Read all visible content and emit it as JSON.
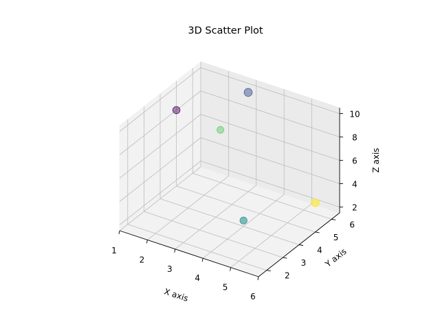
{
  "chart_data": {
    "type": "scatter",
    "projection": "3d",
    "title": "3D Scatter Plot",
    "xlabel": "X axis",
    "ylabel": "Y axis",
    "zlabel": "Z axis",
    "xlim": [
      1,
      6
    ],
    "ylim": [
      1.5,
      6.5
    ],
    "zlim": [
      1.5,
      10.5
    ],
    "xticks": [
      1,
      2,
      3,
      4,
      5,
      6
    ],
    "yticks": [
      2,
      3,
      4,
      5,
      6
    ],
    "zticks": [
      2,
      4,
      6,
      8,
      10
    ],
    "grid": true,
    "points": [
      {
        "x": 1,
        "y": 5,
        "z": 8,
        "color": "#440154"
      },
      {
        "x": 3,
        "y": 6,
        "z": 10,
        "color": "#3b528b"
      },
      {
        "x": 4,
        "y": 4,
        "z": 2,
        "color": "#21918c"
      },
      {
        "x": 2,
        "y": 6,
        "z": 6,
        "color": "#5ec962"
      },
      {
        "x": 6,
        "y": 5,
        "z": 4,
        "color": "#fde725"
      }
    ]
  }
}
